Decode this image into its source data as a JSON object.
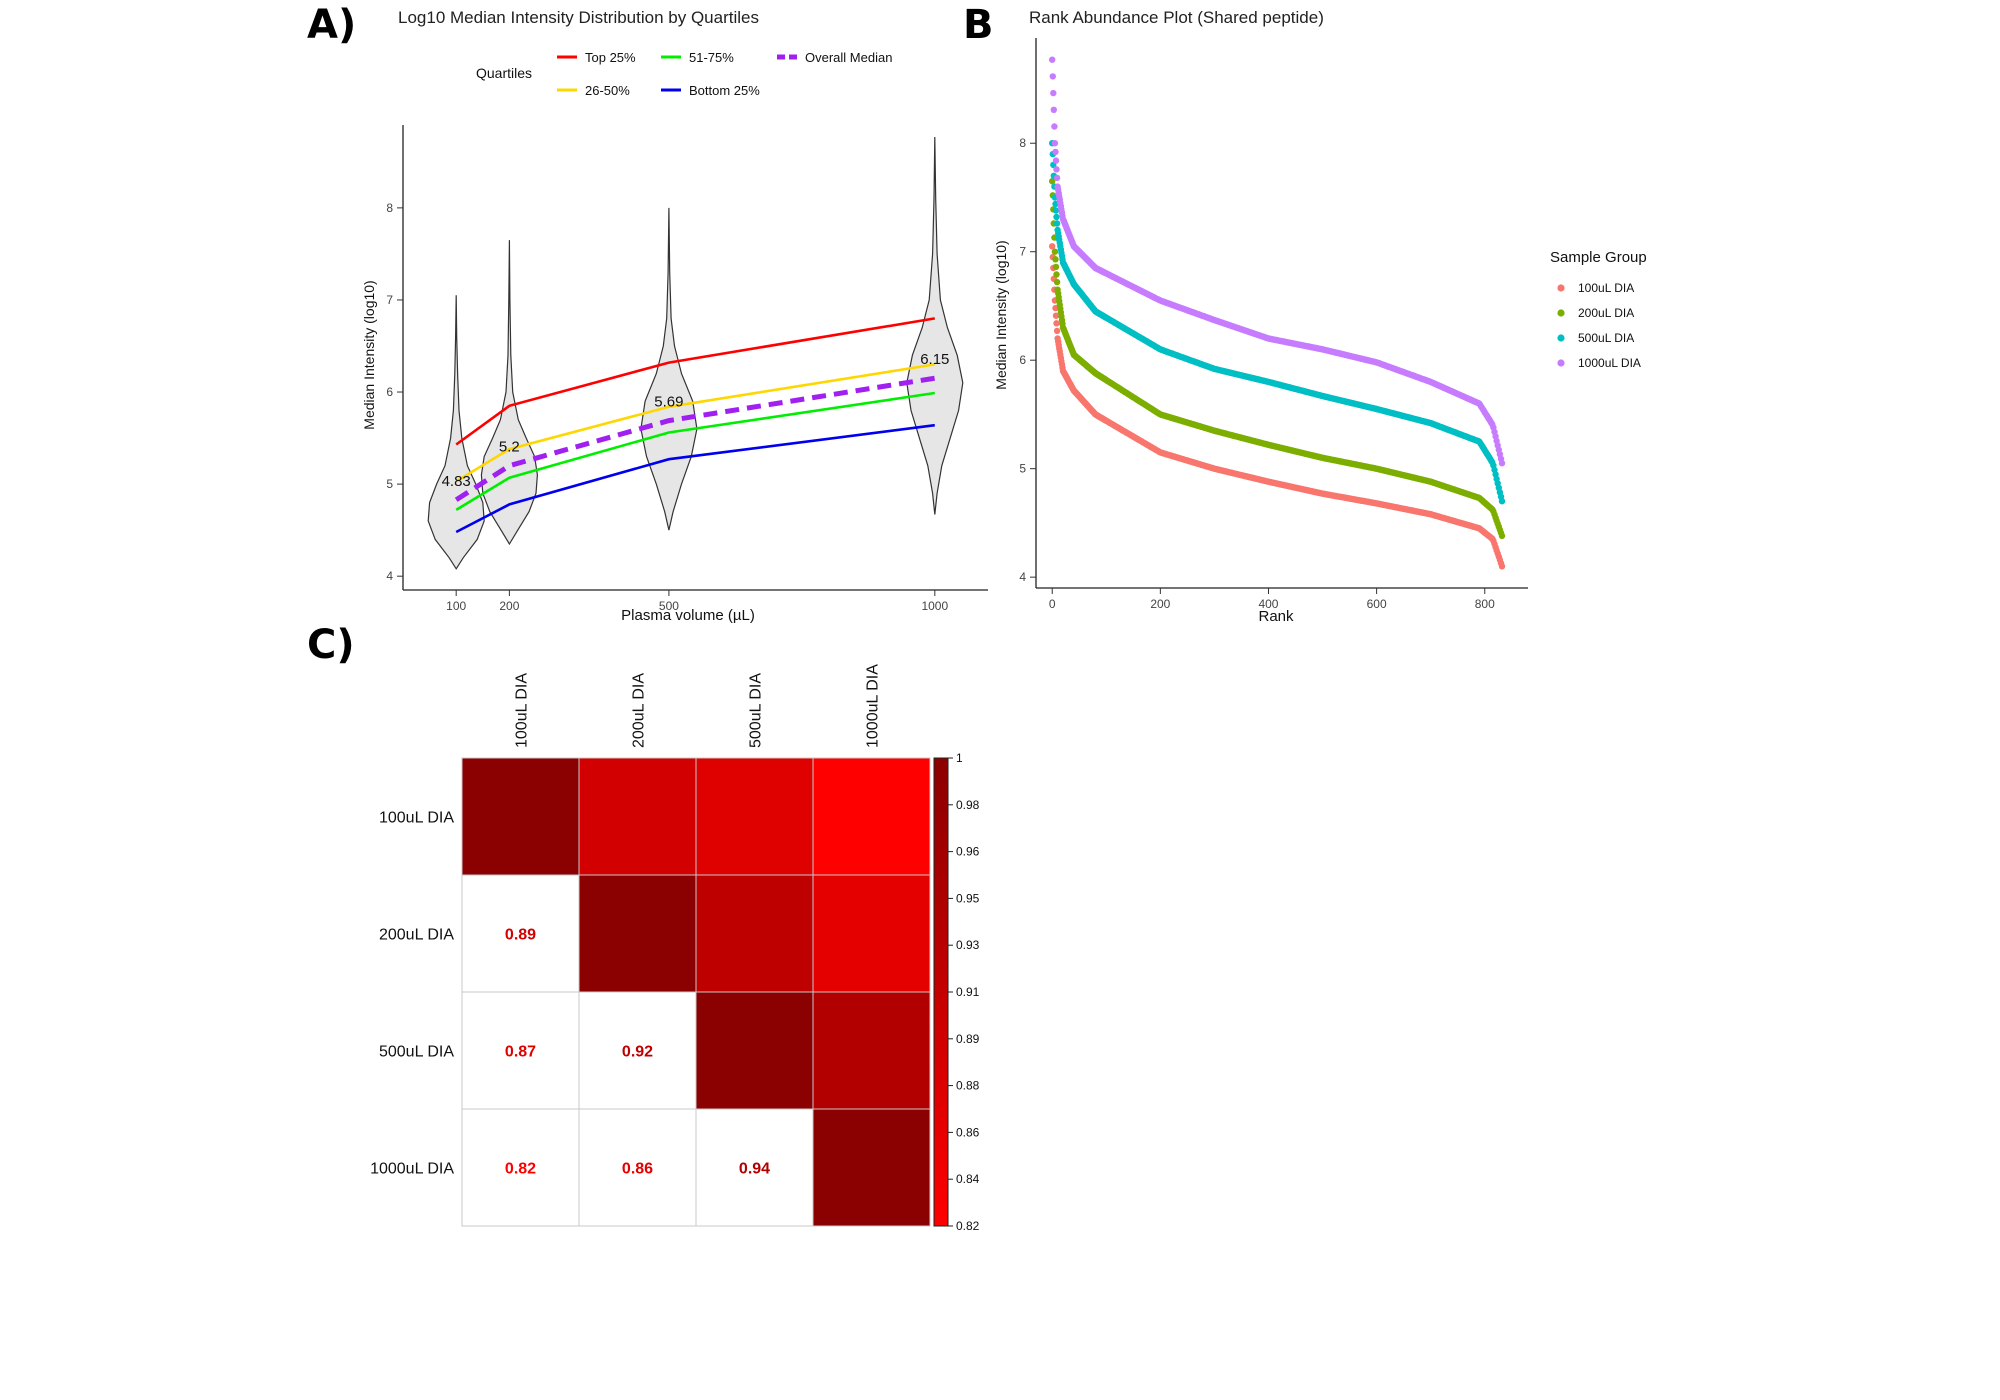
{
  "panel_labels": {
    "a": "A)",
    "b": "B",
    "c": "C)"
  },
  "chart_data": [
    {
      "id": "violin",
      "type": "line",
      "title": "Log10 Median Intensity Distribution by Quartiles",
      "xlabel": "Plasma volume (µL)",
      "ylabel": "Median Intensity (log10)",
      "xlim": [
        0,
        1100
      ],
      "ylim": [
        3.85,
        8.9
      ],
      "x_ticks": [
        100,
        200,
        500,
        1000
      ],
      "y_ticks": [
        4,
        5,
        6,
        7,
        8
      ],
      "grid": false,
      "legend": {
        "title": "Quartiles",
        "position": "top",
        "entries": [
          {
            "label": "Top 25%",
            "color": "#ff0000",
            "dashed": false
          },
          {
            "label": "51-75%",
            "color": "#00ee00",
            "dashed": false
          },
          {
            "label": "Overall Median",
            "color": "#a020f0",
            "dashed": true
          },
          {
            "label": "26-50%",
            "color": "#ffd700",
            "dashed": false
          },
          {
            "label": "Bottom 25%",
            "color": "#0000ee",
            "dashed": false
          }
        ]
      },
      "series": [
        {
          "name": "Top 25%",
          "color": "#ff0000",
          "dashed": false,
          "x": [
            100,
            200,
            500,
            1000
          ],
          "y": [
            5.43,
            5.85,
            6.32,
            6.8
          ]
        },
        {
          "name": "26-50%",
          "color": "#ffd700",
          "dashed": false,
          "x": [
            100,
            200,
            500,
            1000
          ],
          "y": [
            5.03,
            5.38,
            5.84,
            6.3
          ]
        },
        {
          "name": "Overall Median",
          "color": "#a020f0",
          "dashed": true,
          "x": [
            100,
            200,
            500,
            1000
          ],
          "y": [
            4.83,
            5.2,
            5.69,
            6.15
          ]
        },
        {
          "name": "51-75%",
          "color": "#00ee00",
          "dashed": false,
          "x": [
            100,
            200,
            500,
            1000
          ],
          "y": [
            4.72,
            5.07,
            5.56,
            5.99
          ]
        },
        {
          "name": "Bottom 25%",
          "color": "#0000ee",
          "dashed": false,
          "x": [
            100,
            200,
            500,
            1000
          ],
          "y": [
            4.48,
            4.78,
            5.27,
            5.64
          ]
        }
      ],
      "median_labels": [
        {
          "x": 100,
          "y": 4.83,
          "text": "4.83"
        },
        {
          "x": 200,
          "y": 5.2,
          "text": "5.2"
        },
        {
          "x": 500,
          "y": 5.69,
          "text": "5.69"
        },
        {
          "x": 1000,
          "y": 6.15,
          "text": "6.15"
        }
      ],
      "violins": [
        {
          "x": 100,
          "min": 4.08,
          "max": 7.05,
          "density": [
            [
              4.08,
              0
            ],
            [
              4.2,
              0.25
            ],
            [
              4.4,
              0.75
            ],
            [
              4.6,
              1.0
            ],
            [
              4.8,
              0.95
            ],
            [
              5.0,
              0.7
            ],
            [
              5.2,
              0.4
            ],
            [
              5.5,
              0.2
            ],
            [
              5.8,
              0.1
            ],
            [
              6.2,
              0.05
            ],
            [
              6.6,
              0.02
            ],
            [
              7.05,
              0
            ]
          ]
        },
        {
          "x": 200,
          "min": 4.35,
          "max": 7.65,
          "density": [
            [
              4.35,
              0
            ],
            [
              4.5,
              0.3
            ],
            [
              4.7,
              0.7
            ],
            [
              4.9,
              0.95
            ],
            [
              5.1,
              1.0
            ],
            [
              5.3,
              0.9
            ],
            [
              5.5,
              0.6
            ],
            [
              5.7,
              0.32
            ],
            [
              6.0,
              0.12
            ],
            [
              6.4,
              0.05
            ],
            [
              7.0,
              0.02
            ],
            [
              7.65,
              0
            ]
          ]
        },
        {
          "x": 500,
          "min": 4.5,
          "max": 8.0,
          "density": [
            [
              4.5,
              0
            ],
            [
              4.7,
              0.15
            ],
            [
              5.0,
              0.45
            ],
            [
              5.3,
              0.8
            ],
            [
              5.6,
              1.0
            ],
            [
              5.9,
              0.85
            ],
            [
              6.2,
              0.45
            ],
            [
              6.5,
              0.2
            ],
            [
              6.8,
              0.08
            ],
            [
              7.3,
              0.03
            ],
            [
              8.0,
              0
            ]
          ]
        },
        {
          "x": 1000,
          "min": 4.67,
          "max": 8.77,
          "density": [
            [
              4.67,
              0
            ],
            [
              4.9,
              0.08
            ],
            [
              5.2,
              0.25
            ],
            [
              5.5,
              0.55
            ],
            [
              5.8,
              0.85
            ],
            [
              6.1,
              1.0
            ],
            [
              6.4,
              0.8
            ],
            [
              6.7,
              0.45
            ],
            [
              7.0,
              0.2
            ],
            [
              7.5,
              0.08
            ],
            [
              8.1,
              0.03
            ],
            [
              8.77,
              0
            ]
          ]
        }
      ]
    },
    {
      "id": "rank",
      "type": "scatter",
      "title": "Rank Abundance Plot (Shared peptide)",
      "xlabel": "Rank",
      "ylabel": "Median Intensity (log10)",
      "xlim": [
        -30,
        880
      ],
      "ylim": [
        3.9,
        8.97
      ],
      "x_ticks": [
        0,
        200,
        400,
        600,
        800
      ],
      "y_ticks": [
        4,
        5,
        6,
        7,
        8
      ],
      "grid": false,
      "n_points": 832,
      "legend": {
        "title": "Sample Group",
        "position": "right"
      },
      "series": [
        {
          "name": "100uL DIA",
          "color": "#f8766d",
          "start": 7.05,
          "early": [
            [
              0,
              7.05
            ],
            [
              5,
              6.55
            ],
            [
              10,
              6.2
            ],
            [
              20,
              5.9
            ],
            [
              40,
              5.72
            ],
            [
              80,
              5.5
            ]
          ],
          "curve": [
            [
              80,
              5.5
            ],
            [
              200,
              5.15
            ],
            [
              300,
              5.0
            ],
            [
              400,
              4.88
            ],
            [
              500,
              4.77
            ],
            [
              600,
              4.68
            ],
            [
              700,
              4.58
            ],
            [
              790,
              4.45
            ],
            [
              815,
              4.35
            ],
            [
              832,
              4.1
            ]
          ]
        },
        {
          "name": "200uL DIA",
          "color": "#7cae00",
          "start": 7.65,
          "early": [
            [
              0,
              7.65
            ],
            [
              5,
              7.0
            ],
            [
              10,
              6.65
            ],
            [
              20,
              6.3
            ],
            [
              40,
              6.05
            ],
            [
              80,
              5.88
            ]
          ],
          "curve": [
            [
              80,
              5.88
            ],
            [
              200,
              5.5
            ],
            [
              300,
              5.35
            ],
            [
              400,
              5.22
            ],
            [
              500,
              5.1
            ],
            [
              600,
              5.0
            ],
            [
              700,
              4.88
            ],
            [
              790,
              4.73
            ],
            [
              815,
              4.62
            ],
            [
              832,
              4.38
            ]
          ]
        },
        {
          "name": "500uL DIA",
          "color": "#00bfc4",
          "start": 8.0,
          "early": [
            [
              0,
              8.0
            ],
            [
              5,
              7.5
            ],
            [
              10,
              7.2
            ],
            [
              20,
              6.9
            ],
            [
              40,
              6.7
            ],
            [
              80,
              6.45
            ]
          ],
          "curve": [
            [
              80,
              6.45
            ],
            [
              200,
              6.1
            ],
            [
              300,
              5.92
            ],
            [
              400,
              5.8
            ],
            [
              500,
              5.67
            ],
            [
              600,
              5.55
            ],
            [
              700,
              5.42
            ],
            [
              790,
              5.25
            ],
            [
              815,
              5.05
            ],
            [
              832,
              4.7
            ]
          ]
        },
        {
          "name": "1000uL DIA",
          "color": "#c77cff",
          "start": 8.77,
          "early": [
            [
              0,
              8.77
            ],
            [
              5,
              8.0
            ],
            [
              10,
              7.6
            ],
            [
              20,
              7.3
            ],
            [
              40,
              7.05
            ],
            [
              80,
              6.85
            ]
          ],
          "curve": [
            [
              80,
              6.85
            ],
            [
              200,
              6.55
            ],
            [
              300,
              6.37
            ],
            [
              400,
              6.2
            ],
            [
              500,
              6.1
            ],
            [
              600,
              5.98
            ],
            [
              700,
              5.8
            ],
            [
              790,
              5.6
            ],
            [
              815,
              5.4
            ],
            [
              832,
              5.05
            ]
          ]
        }
      ]
    },
    {
      "id": "corr",
      "type": "heatmap",
      "rows": [
        "100uL DIA",
        "200uL DIA",
        "500uL DIA",
        "1000uL DIA"
      ],
      "cols": [
        "100uL DIA",
        "200uL DIA",
        "500uL DIA",
        "1000uL DIA"
      ],
      "values": [
        [
          1.0,
          0.89,
          0.87,
          0.82
        ],
        [
          0.89,
          1.0,
          0.92,
          0.86
        ],
        [
          0.87,
          0.92,
          1.0,
          0.94
        ],
        [
          0.82,
          0.86,
          0.94,
          1.0
        ]
      ],
      "labels_in_lower_triangle": [
        {
          "row": 1,
          "col": 0,
          "text": "0.89"
        },
        {
          "row": 2,
          "col": 0,
          "text": "0.87"
        },
        {
          "row": 2,
          "col": 1,
          "text": "0.92"
        },
        {
          "row": 3,
          "col": 0,
          "text": "0.82"
        },
        {
          "row": 3,
          "col": 1,
          "text": "0.86"
        },
        {
          "row": 3,
          "col": 2,
          "text": "0.94"
        }
      ],
      "colorbar": {
        "range": [
          0.82,
          1
        ],
        "ticks": [
          "1",
          "0.98",
          "0.96",
          "0.95",
          "0.93",
          "0.91",
          "0.89",
          "0.88",
          "0.86",
          "0.84",
          "0.82"
        ],
        "color_low": "#ff0000",
        "color_high": "#8b0000"
      }
    }
  ]
}
